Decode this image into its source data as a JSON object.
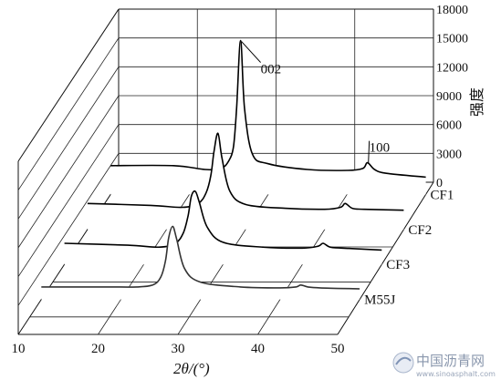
{
  "chart_data": {
    "type": "line",
    "style": "3d-waterfall",
    "title": "",
    "xlabel": "2θ/(°)",
    "ylabel": "强度",
    "x_ticks": [
      "10",
      "20",
      "30",
      "40",
      "50"
    ],
    "y_ticks": [
      "0",
      "3000",
      "6000",
      "9000",
      "12000",
      "15000",
      "18000"
    ],
    "xlim": [
      10,
      50
    ],
    "ylim": [
      0,
      18000
    ],
    "grid": true,
    "series": [
      {
        "name": "CF1",
        "x": [
          10,
          18,
          22,
          24,
          25,
          25.6,
          26,
          26.5,
          27,
          28,
          30,
          35,
          40,
          42,
          42.6,
          43.5,
          45,
          50
        ],
        "y": [
          3000,
          3000,
          2600,
          2700,
          3500,
          5000,
          9000,
          16000,
          9000,
          4200,
          3200,
          2600,
          2500,
          2700,
          3300,
          2600,
          2200,
          1800
        ]
      },
      {
        "name": "CF2",
        "x": [
          10,
          18,
          22,
          24,
          25,
          25.6,
          26,
          26.5,
          27,
          28,
          30,
          35,
          40,
          42,
          42.6,
          43.5,
          45,
          50
        ],
        "y": [
          2700,
          2500,
          2300,
          2700,
          3800,
          5600,
          8100,
          10000,
          7500,
          4000,
          2600,
          2200,
          2100,
          2300,
          2700,
          2200,
          2100,
          2000
        ]
      },
      {
        "name": "CF3",
        "x": [
          10,
          18,
          22,
          24,
          25,
          25.6,
          26,
          26.5,
          27,
          28,
          30,
          35,
          40,
          42,
          42.6,
          43.5,
          45,
          50
        ],
        "y": [
          2200,
          2000,
          1800,
          2200,
          3300,
          5100,
          7100,
          7600,
          6500,
          3900,
          2300,
          1800,
          1700,
          1900,
          2200,
          1800,
          1700,
          1500
        ]
      },
      {
        "name": "M55J",
        "x": [
          10,
          18,
          22,
          24,
          25,
          25.6,
          26,
          26.5,
          27,
          28,
          30,
          35,
          40,
          42,
          42.6,
          43.5,
          45,
          50
        ],
        "y": [
          1300,
          1300,
          1300,
          1500,
          2300,
          4000,
          6400,
          7600,
          6300,
          3200,
          1800,
          1300,
          1200,
          1300,
          1500,
          1300,
          1200,
          1100
        ]
      }
    ],
    "annotations": [
      {
        "text": "002",
        "x": 26.5,
        "series": "CF1"
      },
      {
        "text": "100",
        "x": 42.6,
        "series": "CF1"
      }
    ]
  },
  "watermark": {
    "text": "中国沥青网",
    "url": "www.sinoasphalt.com"
  }
}
